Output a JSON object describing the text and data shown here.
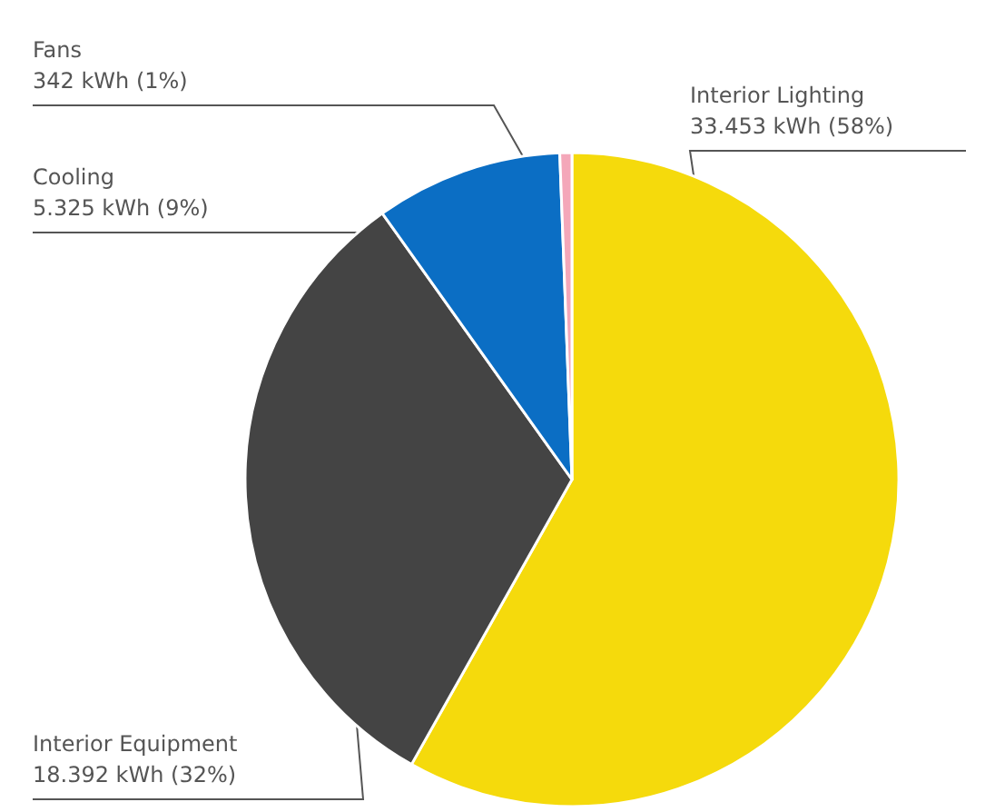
{
  "chart_data": {
    "type": "pie",
    "categories": [
      "Interior Lighting",
      "Interior Equipment",
      "Cooling",
      "Fans"
    ],
    "values": [
      33453,
      18392,
      5325,
      342
    ],
    "colors": [
      "#f5da0c",
      "#444444",
      "#0b6ec4",
      "#f4a7b9"
    ],
    "value_labels": [
      "33.453 kWh (58%)",
      "18.392 kWh (32%)",
      "5.325 kWh (9%)",
      "342 kWh (1%)"
    ]
  }
}
